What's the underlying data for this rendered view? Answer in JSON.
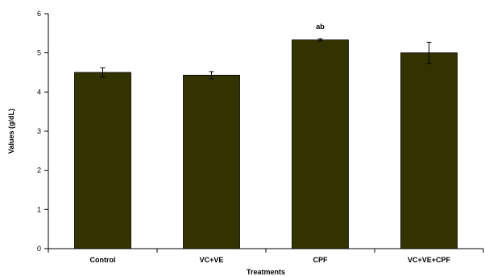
{
  "chart_data": {
    "type": "bar",
    "title": "",
    "xlabel": "Treatments",
    "ylabel": "Values (g/dL)",
    "ylim": [
      0,
      6
    ],
    "yticks": [
      0,
      1,
      2,
      3,
      4,
      5,
      6
    ],
    "grid": false,
    "legend": "none",
    "categories": [
      "Control",
      "VC+VE",
      "CPF",
      "VC+VE+CPF"
    ],
    "values": [
      4.5,
      4.43,
      5.33,
      5.0
    ],
    "errors": [
      0.12,
      0.09,
      0.03,
      0.27
    ],
    "annotations": [
      "",
      "",
      "ab",
      ""
    ],
    "colors": {
      "bar": "#333300",
      "axis": "#000000"
    }
  }
}
